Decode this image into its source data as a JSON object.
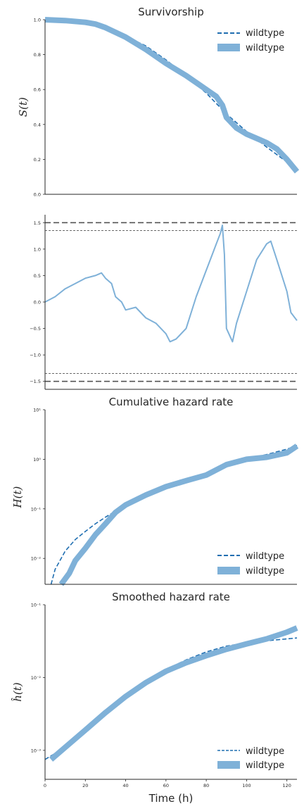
{
  "colors": {
    "fit_line": "#1f6eb1",
    "band": "#7fb1d8",
    "ref_line": "#555555",
    "text": "#262626"
  },
  "chart_data": [
    {
      "type": "line",
      "title": "Survivorship",
      "ylabel": "S(t)",
      "xlim": [
        0,
        125
      ],
      "ylim": [
        0,
        1.0
      ],
      "yticks": [
        "0.0",
        "0.2",
        "0.4",
        "0.6",
        "0.8",
        "1.0"
      ],
      "legend": [
        "wildtype",
        "wildtype"
      ],
      "legend_position": "top-right",
      "series": [
        {
          "name": "wildtype",
          "style": "dashed",
          "x": [
            0,
            10,
            20,
            30,
            40,
            50,
            60,
            70,
            80,
            90,
            100,
            110,
            120,
            125
          ],
          "y": [
            1.0,
            0.99,
            0.975,
            0.95,
            0.905,
            0.85,
            0.77,
            0.68,
            0.58,
            0.46,
            0.36,
            0.27,
            0.185,
            0.15
          ]
        },
        {
          "name": "wildtype",
          "style": "band",
          "x": [
            0,
            10,
            20,
            25,
            30,
            40,
            50,
            60,
            70,
            80,
            85,
            88,
            90,
            95,
            100,
            105,
            110,
            115,
            120,
            125
          ],
          "y": [
            1.0,
            0.995,
            0.985,
            0.975,
            0.955,
            0.9,
            0.83,
            0.75,
            0.68,
            0.6,
            0.56,
            0.51,
            0.44,
            0.38,
            0.345,
            0.32,
            0.295,
            0.26,
            0.2,
            0.13
          ]
        }
      ]
    },
    {
      "type": "line",
      "title": "",
      "ylabel": "",
      "xlim": [
        0,
        125
      ],
      "ylim": [
        -1.65,
        1.65
      ],
      "yticks": [
        "−1.5",
        "−1.0",
        "−0.5",
        "0.0",
        "0.5",
        "1.0",
        "1.5"
      ],
      "reference_lines": [
        1.5,
        1.35,
        -1.35,
        -1.5
      ],
      "series": [
        {
          "name": "wildtype",
          "x": [
            0,
            5,
            10,
            15,
            20,
            25,
            28,
            30,
            33,
            35,
            38,
            40,
            45,
            50,
            55,
            60,
            62,
            65,
            70,
            75,
            80,
            83,
            85,
            87,
            88,
            89,
            90,
            93,
            95,
            100,
            105,
            110,
            112,
            115,
            120,
            122,
            125
          ],
          "y": [
            0.0,
            0.1,
            0.25,
            0.35,
            0.45,
            0.5,
            0.55,
            0.45,
            0.35,
            0.1,
            0.0,
            -0.15,
            -0.1,
            -0.3,
            -0.4,
            -0.6,
            -0.75,
            -0.7,
            -0.5,
            0.1,
            0.6,
            0.9,
            1.1,
            1.3,
            1.45,
            0.9,
            -0.5,
            -0.75,
            -0.4,
            0.2,
            0.8,
            1.1,
            1.15,
            0.8,
            0.2,
            -0.2,
            -0.35
          ]
        }
      ]
    },
    {
      "type": "line",
      "title": "Cumulative hazard rate",
      "ylabel": "H(t)",
      "yscale": "log",
      "xlim": [
        0,
        125
      ],
      "ylim": [
        0.003,
        10
      ],
      "yticks": [
        "10⁻²",
        "10⁻¹",
        "10⁰",
        "10¹"
      ],
      "legend": [
        "wildtype",
        "wildtype"
      ],
      "legend_position": "bottom-right",
      "series": [
        {
          "name": "wildtype",
          "style": "dashed",
          "x": [
            3,
            5,
            10,
            15,
            20,
            25,
            30,
            40,
            50,
            60,
            70,
            80,
            90,
            100,
            110,
            120,
            125
          ],
          "y": [
            0.003,
            0.006,
            0.014,
            0.024,
            0.035,
            0.05,
            0.068,
            0.12,
            0.18,
            0.27,
            0.38,
            0.52,
            0.78,
            1.0,
            1.25,
            1.6,
            1.9
          ]
        },
        {
          "name": "wildtype",
          "style": "band",
          "x": [
            8,
            12,
            15,
            20,
            25,
            30,
            35,
            40,
            50,
            60,
            70,
            80,
            90,
            100,
            110,
            120,
            125
          ],
          "y": [
            0.003,
            0.005,
            0.009,
            0.016,
            0.03,
            0.05,
            0.085,
            0.12,
            0.19,
            0.28,
            0.37,
            0.48,
            0.78,
            1.0,
            1.1,
            1.35,
            1.85
          ]
        }
      ]
    },
    {
      "type": "line",
      "title": "Smoothed hazard rate",
      "ylabel": "ĥ(t)",
      "yscale": "log",
      "xlabel": "Time (h)",
      "xlim": [
        0,
        125
      ],
      "xticks": [
        "0",
        "20",
        "40",
        "60",
        "80",
        "100",
        "120"
      ],
      "ylim": [
        0.0004,
        0.1
      ],
      "yticks": [
        "10⁻³",
        "10⁻²",
        "10⁻¹"
      ],
      "legend": [
        "wildtype",
        "wildtype"
      ],
      "legend_position": "bottom-right",
      "series": [
        {
          "name": "wildtype",
          "style": "dashed",
          "x": [
            0,
            10,
            20,
            30,
            40,
            50,
            60,
            70,
            80,
            90,
            100,
            110,
            120,
            125
          ],
          "y": [
            0.00075,
            0.0011,
            0.0018,
            0.0032,
            0.0055,
            0.0088,
            0.0128,
            0.0175,
            0.0225,
            0.027,
            0.03,
            0.032,
            0.034,
            0.035
          ]
        },
        {
          "name": "wildtype",
          "style": "band",
          "x": [
            3,
            10,
            20,
            30,
            40,
            50,
            60,
            70,
            80,
            90,
            100,
            110,
            120,
            125
          ],
          "y": [
            0.00075,
            0.0011,
            0.0019,
            0.0033,
            0.0055,
            0.0085,
            0.0122,
            0.016,
            0.02,
            0.0245,
            0.029,
            0.034,
            0.042,
            0.048
          ]
        }
      ]
    }
  ]
}
